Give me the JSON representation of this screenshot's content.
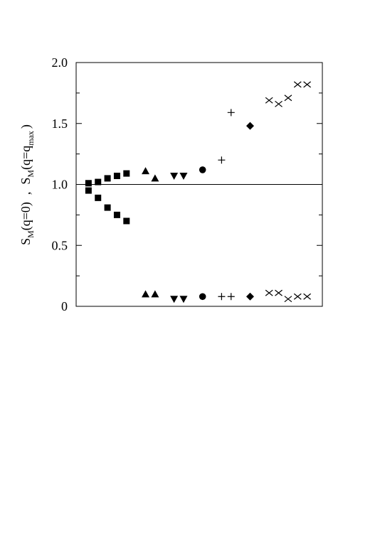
{
  "chart_data": {
    "type": "scatter",
    "title": "",
    "xlabel": "",
    "ylabel": {
      "part1_base": "S",
      "part1_sub": "M",
      "part1_rest": "(q=0)",
      "separator": ",",
      "part2_base": "S",
      "part2_sub": "M",
      "part2_rest": "(q=q",
      "part2_sub2": "max",
      "part2_close": ")"
    },
    "ylim": [
      0,
      2.0
    ],
    "yticks": [
      0,
      0.5,
      1.0,
      1.5,
      2.0
    ],
    "ytick_labels": [
      "0",
      "0.5",
      "1.0",
      "1.5",
      "2.0"
    ],
    "reference_line": 1.0,
    "x_axis_ticks": "none",
    "grid": false,
    "legend": "none",
    "marker_color": "#000000",
    "series": [
      {
        "marker": "square",
        "q0": [
          [
            1,
            1.01
          ],
          [
            2,
            1.02
          ],
          [
            3,
            1.05
          ],
          [
            4,
            1.07
          ],
          [
            5,
            1.09
          ]
        ],
        "qmax": [
          [
            1,
            0.95
          ],
          [
            2,
            0.89
          ],
          [
            3,
            0.81
          ],
          [
            4,
            0.75
          ],
          [
            5,
            0.7
          ]
        ]
      },
      {
        "marker": "triangle-up",
        "q0": [
          [
            7,
            1.11
          ],
          [
            8,
            1.05
          ]
        ],
        "qmax": [
          [
            7,
            0.1
          ],
          [
            8,
            0.1
          ]
        ]
      },
      {
        "marker": "triangle-down",
        "q0": [
          [
            10,
            1.07
          ],
          [
            11,
            1.07
          ]
        ],
        "qmax": [
          [
            10,
            0.06
          ],
          [
            11,
            0.06
          ]
        ]
      },
      {
        "marker": "circle",
        "q0": [
          [
            13,
            1.12
          ]
        ],
        "qmax": [
          [
            13,
            0.08
          ]
        ]
      },
      {
        "marker": "plus",
        "q0": [
          [
            15,
            1.2
          ],
          [
            16,
            1.59
          ]
        ],
        "qmax": [
          [
            15,
            0.08
          ],
          [
            16,
            0.08
          ]
        ]
      },
      {
        "marker": "diamond",
        "q0": [
          [
            18,
            1.48
          ]
        ],
        "qmax": [
          [
            18,
            0.08
          ]
        ]
      },
      {
        "marker": "cross",
        "q0": [
          [
            20,
            1.69
          ],
          [
            21,
            1.66
          ],
          [
            22,
            1.71
          ],
          [
            23,
            1.82
          ],
          [
            24,
            1.82
          ]
        ],
        "qmax": [
          [
            20,
            0.11
          ],
          [
            21,
            0.11
          ],
          [
            22,
            0.06
          ],
          [
            23,
            0.08
          ],
          [
            24,
            0.08
          ]
        ]
      }
    ],
    "xlim": [
      -0.3,
      25.6
    ]
  }
}
